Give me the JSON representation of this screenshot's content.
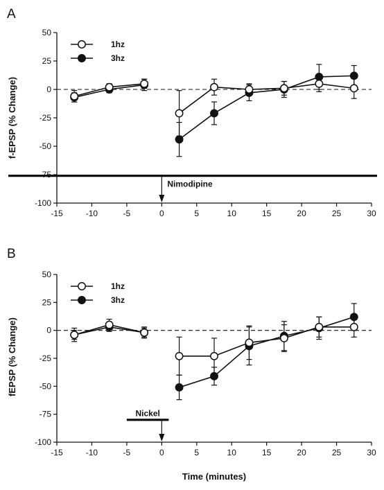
{
  "chart_data": [
    {
      "type": "line",
      "panel_label": "A",
      "xlabel": "",
      "ylabel": "f-EPSP (% Change)",
      "xlim": [
        -15,
        30
      ],
      "ylim": [
        -100,
        50
      ],
      "x_ticks": [
        -15,
        -10,
        -5,
        0,
        5,
        10,
        15,
        20,
        25,
        30
      ],
      "y_ticks": [
        -100,
        -75,
        -50,
        -25,
        0,
        25,
        50
      ],
      "grid": false,
      "legend_position": "top-left",
      "reference_line": {
        "y": 0,
        "style": "dashed"
      },
      "drug_bar": {
        "label": "Nimodipine",
        "y": -76,
        "x_start": -15,
        "x_end": 30,
        "arrow_x": 0
      },
      "series": [
        {
          "name": "1hz",
          "marker": "open-circle",
          "segments": [
            [
              {
                "x": -12.5,
                "y": -6,
                "err": 5
              },
              {
                "x": -7.5,
                "y": 2,
                "err": 3
              },
              {
                "x": -2.5,
                "y": 5,
                "err": 4
              }
            ],
            [
              {
                "x": 2.5,
                "y": -21,
                "err": 20
              },
              {
                "x": 7.5,
                "y": 2,
                "err": 7
              },
              {
                "x": 12.5,
                "y": 0,
                "err": 5
              },
              {
                "x": 17.5,
                "y": 1,
                "err": 6
              },
              {
                "x": 22.5,
                "y": 5,
                "err": 7
              },
              {
                "x": 27.5,
                "y": 1,
                "err": 9
              }
            ]
          ]
        },
        {
          "name": "3hz",
          "marker": "filled-circle",
          "segments": [
            [
              {
                "x": -12.5,
                "y": -7,
                "err": 4
              },
              {
                "x": -7.5,
                "y": 0,
                "err": 3
              },
              {
                "x": -2.5,
                "y": 4,
                "err": 5
              }
            ],
            [
              {
                "x": 2.5,
                "y": -44,
                "err": 15
              },
              {
                "x": 7.5,
                "y": -21,
                "err": 10
              },
              {
                "x": 12.5,
                "y": -3,
                "err": 7
              },
              {
                "x": 17.5,
                "y": 0,
                "err": 7
              },
              {
                "x": 22.5,
                "y": 11,
                "err": 11
              },
              {
                "x": 27.5,
                "y": 12,
                "err": 9
              }
            ]
          ]
        }
      ]
    },
    {
      "type": "line",
      "panel_label": "B",
      "xlabel": "Time (minutes)",
      "ylabel": "fEPSP (% Change)",
      "xlim": [
        -15,
        30
      ],
      "ylim": [
        -100,
        50
      ],
      "x_ticks": [
        -15,
        -10,
        -5,
        0,
        5,
        10,
        15,
        20,
        25,
        30
      ],
      "y_ticks": [
        -100,
        -75,
        -50,
        -25,
        0,
        25,
        50
      ],
      "grid": false,
      "legend_position": "top-left",
      "reference_line": {
        "y": 0,
        "style": "dashed"
      },
      "drug_bar": {
        "label": "Nickel",
        "y": -80,
        "x_start": -5,
        "x_end": 1,
        "arrow_x": 0
      },
      "series": [
        {
          "name": "1hz",
          "marker": "open-circle",
          "segments": [
            [
              {
                "x": -12.5,
                "y": -4,
                "err": 6
              },
              {
                "x": -7.5,
                "y": 5,
                "err": 5
              },
              {
                "x": -2.5,
                "y": -2,
                "err": 5
              }
            ],
            [
              {
                "x": 2.5,
                "y": -23,
                "err": 17
              },
              {
                "x": 7.5,
                "y": -23,
                "err": 16
              },
              {
                "x": 12.5,
                "y": -11,
                "err": 15
              },
              {
                "x": 17.5,
                "y": -7,
                "err": 12
              },
              {
                "x": 22.5,
                "y": 3,
                "err": 9
              },
              {
                "x": 27.5,
                "y": 3,
                "err": 9
              }
            ]
          ]
        },
        {
          "name": "3hz",
          "marker": "filled-circle",
          "segments": [
            [
              {
                "x": -12.5,
                "y": -4,
                "err": 4
              },
              {
                "x": -7.5,
                "y": 3,
                "err": 4
              },
              {
                "x": -2.5,
                "y": -2,
                "err": 4
              }
            ],
            [
              {
                "x": 2.5,
                "y": -51,
                "err": 11
              },
              {
                "x": 7.5,
                "y": -41,
                "err": 8
              },
              {
                "x": 12.5,
                "y": -14,
                "err": 17
              },
              {
                "x": 17.5,
                "y": -5,
                "err": 13
              },
              {
                "x": 22.5,
                "y": 2,
                "err": 10
              },
              {
                "x": 27.5,
                "y": 12,
                "err": 12
              }
            ]
          ]
        }
      ]
    }
  ]
}
